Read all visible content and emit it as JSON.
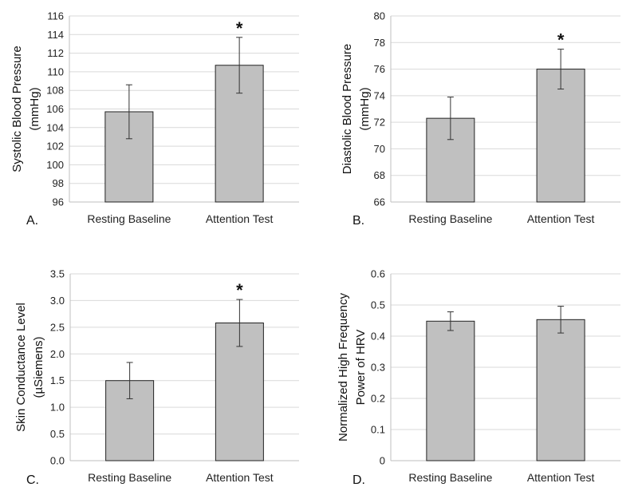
{
  "colors": {
    "bar": "#c0c0c0"
  },
  "chart_data": [
    {
      "type": "bar",
      "panel_label": "A.",
      "categories": [
        "Resting Baseline",
        "Attention Test"
      ],
      "values": [
        105.7,
        110.7
      ],
      "errors": [
        2.9,
        3.0
      ],
      "significance": [
        "",
        "*"
      ],
      "ylabel": [
        "Systolic Blood Pressure",
        "(mmHg)"
      ],
      "ylim": [
        96,
        116
      ],
      "yticks": [
        "96",
        "98",
        "100",
        "102",
        "104",
        "106",
        "108",
        "110",
        "112",
        "114",
        "116"
      ],
      "grid": true
    },
    {
      "type": "bar",
      "panel_label": "B.",
      "categories": [
        "Resting Baseline",
        "Attention Test"
      ],
      "values": [
        72.3,
        76.0
      ],
      "errors": [
        1.6,
        1.5
      ],
      "significance": [
        "",
        "*"
      ],
      "ylabel": [
        "Diastolic Blood Pressure",
        "(mmHg)"
      ],
      "ylim": [
        66,
        80
      ],
      "yticks": [
        "66",
        "68",
        "70",
        "72",
        "74",
        "76",
        "78",
        "80"
      ],
      "grid": true
    },
    {
      "type": "bar",
      "panel_label": "C.",
      "categories": [
        "Resting Baseline",
        "Attention Test"
      ],
      "values": [
        1.5,
        2.58
      ],
      "errors": [
        0.34,
        0.44
      ],
      "significance": [
        "",
        "*"
      ],
      "ylabel": [
        "Skin Conductance Level",
        "(µSiemens)"
      ],
      "ylim": [
        0,
        3.5
      ],
      "yticks": [
        "0.0",
        "0.5",
        "1.0",
        "1.5",
        "2.0",
        "2.5",
        "3.0",
        "3.5"
      ],
      "grid": true
    },
    {
      "type": "bar",
      "panel_label": "D.",
      "categories": [
        "Resting Baseline",
        "Attention Test"
      ],
      "values": [
        0.448,
        0.453
      ],
      "errors": [
        0.03,
        0.043
      ],
      "significance": [
        "",
        ""
      ],
      "ylabel": [
        "Normalized High Frequency",
        "Power of HRV"
      ],
      "ylim": [
        0,
        0.6
      ],
      "yticks": [
        "0",
        "0.1",
        "0.2",
        "0.3",
        "0.4",
        "0.5",
        "0.6"
      ],
      "grid": true
    }
  ]
}
